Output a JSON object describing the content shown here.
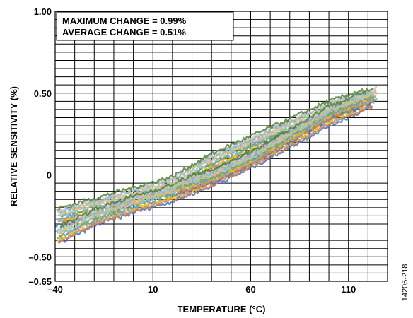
{
  "chart_data": {
    "type": "scatter",
    "xlabel": "TEMPERATURE (°C)",
    "ylabel": "RELATIVE SENSITIVITY (%)",
    "xlim": [
      -40,
      130
    ],
    "ylim": [
      -0.65,
      1.0
    ],
    "x_ticks": [
      -40,
      10,
      60,
      110
    ],
    "x_tick_labels": [
      "–40",
      "10",
      "60",
      "110"
    ],
    "y_ticks": [
      -0.65,
      -0.5,
      0,
      0.5,
      1.0
    ],
    "y_tick_labels": [
      "–0.65",
      "–0.50",
      "0",
      "0.50",
      "1.00"
    ],
    "x_minor_step": 10,
    "y_minor_step": 0.05,
    "grid": true,
    "annotations": [
      "MAXIMUM CHANGE = 0.99%",
      "AVERAGE CHANGE = 0.51%"
    ],
    "figure_id": "14205-218",
    "series_colors": [
      "#4472c4",
      "#ed7d31",
      "#a5a5a5",
      "#ffc000",
      "#5b9bd5",
      "#70ad47",
      "#9dc3e6",
      "#f4b183",
      "#a9d18e",
      "#8faadc",
      "#c9c9c9",
      "#548235"
    ],
    "bands": [
      {
        "name": "",
        "x": [
          -40,
          20,
          40,
          70,
          100,
          120
        ],
        "y": [
          -0.26,
          -0.06,
          0.08,
          0.24,
          0.4,
          0.48
        ],
        "spread": 0.05
      },
      {
        "name": "",
        "x": [
          -40,
          -20,
          0,
          20,
          40,
          60,
          80,
          100,
          125
        ],
        "y": [
          -0.38,
          -0.26,
          -0.18,
          -0.11,
          -0.02,
          0.09,
          0.22,
          0.35,
          0.48
        ],
        "spread": 0.05
      },
      {
        "name": "",
        "x": [
          20,
          40,
          60,
          80,
          100,
          125
        ],
        "y": [
          -0.08,
          -0.01,
          0.1,
          0.24,
          0.38,
          0.5
        ],
        "spread": 0.04
      }
    ]
  }
}
